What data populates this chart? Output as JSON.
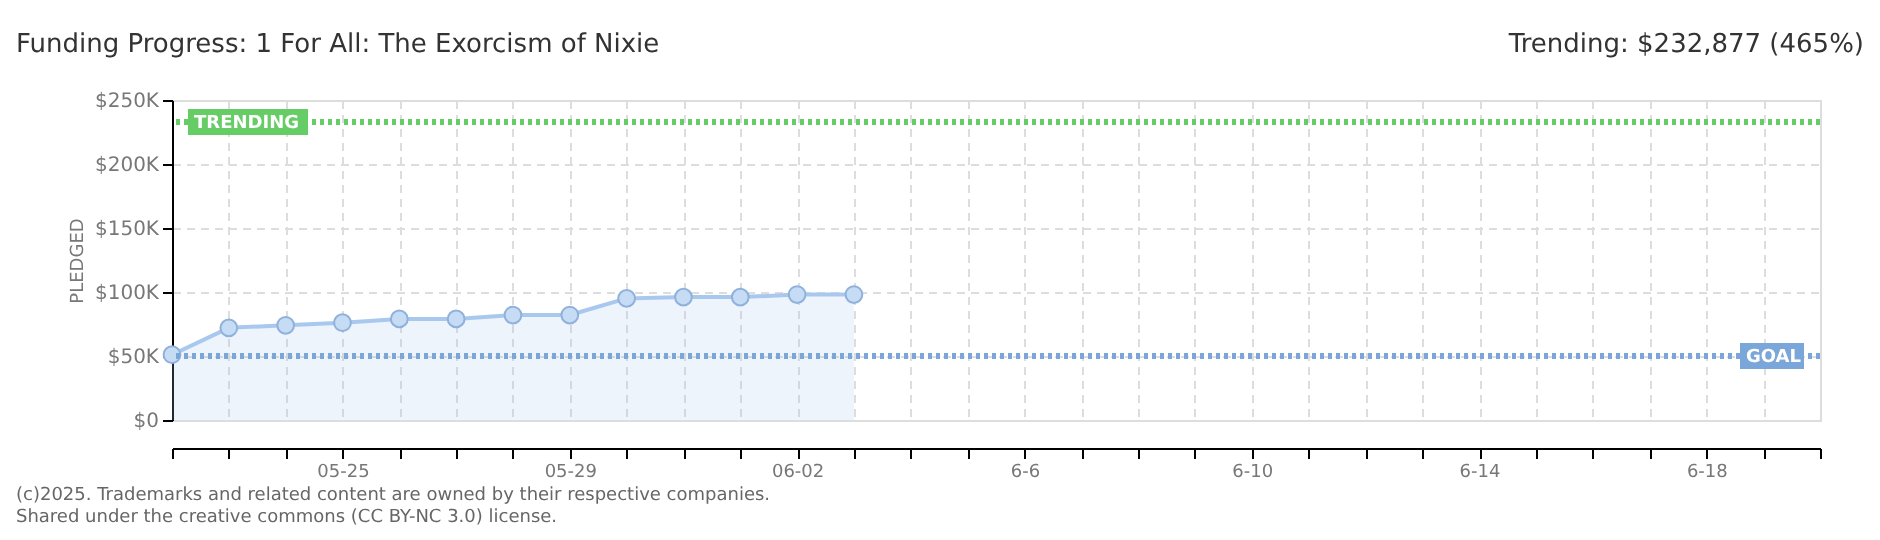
{
  "chart_data": {
    "type": "area",
    "title": "Funding Progress: 1 For All: The Exorcism of Nixie",
    "ylabel": "PLEDGED",
    "x": [
      "2025-05-22",
      "2025-05-23",
      "2025-05-24",
      "2025-05-25",
      "2025-05-26",
      "2025-05-27",
      "2025-05-28",
      "2025-05-29",
      "2025-05-30",
      "2025-05-31",
      "2025-06-01",
      "2025-06-02",
      "2025-06-03"
    ],
    "series": [
      {
        "color": "#a9c8ee",
        "values": [
          51000,
          72000,
          74000,
          76000,
          79000,
          79000,
          82000,
          82000,
          95000,
          96000,
          96000,
          98000,
          98000
        ]
      }
    ],
    "xlim": [
      "2025-05-22",
      "2025-06-20"
    ],
    "xticks": [
      {
        "value": "2025-05-22",
        "label": null
      },
      {
        "value": "2025-05-23",
        "label": null
      },
      {
        "value": "2025-05-24",
        "label": null
      },
      {
        "value": "2025-05-25",
        "label": "05-25"
      },
      {
        "value": "2025-05-26",
        "label": null
      },
      {
        "value": "2025-05-27",
        "label": null
      },
      {
        "value": "2025-05-28",
        "label": null
      },
      {
        "value": "2025-05-29",
        "label": "05-29"
      },
      {
        "value": "2025-05-30",
        "label": null
      },
      {
        "value": "2025-05-31",
        "label": null
      },
      {
        "value": "2025-06-01",
        "label": null
      },
      {
        "value": "2025-06-02",
        "label": "06-02"
      },
      {
        "value": "2025-06-03",
        "label": null
      },
      {
        "value": "2025-06-04",
        "label": null
      },
      {
        "value": "2025-06-05",
        "label": null
      },
      {
        "value": "2025-06-06",
        "label": "6-6"
      },
      {
        "value": "2025-06-07",
        "label": null
      },
      {
        "value": "2025-06-08",
        "label": null
      },
      {
        "value": "2025-06-09",
        "label": null
      },
      {
        "value": "2025-06-10",
        "label": "6-10"
      },
      {
        "value": "2025-06-11",
        "label": null
      },
      {
        "value": "2025-06-12",
        "label": null
      },
      {
        "value": "2025-06-13",
        "label": null
      },
      {
        "value": "2025-06-14",
        "label": "6-14"
      },
      {
        "value": "2025-06-15",
        "label": null
      },
      {
        "value": "2025-06-16",
        "label": null
      },
      {
        "value": "2025-06-17",
        "label": null
      },
      {
        "value": "2025-06-18",
        "label": "6-18"
      },
      {
        "value": "2025-06-19",
        "label": null
      },
      {
        "value": "2025-06-20",
        "label": null
      }
    ],
    "ylim": [
      0,
      250000
    ],
    "yticks": [
      {
        "value": 0,
        "label": "$0"
      },
      {
        "value": 50000,
        "label": "$50K"
      },
      {
        "value": 100000,
        "label": "$100K"
      },
      {
        "value": 150000,
        "label": "$150K"
      },
      {
        "value": 200000,
        "label": "$200K"
      },
      {
        "value": 250000,
        "label": "$250K"
      }
    ],
    "ref_lines": [
      {
        "axis": "y",
        "value": 232877,
        "label": "TRENDING",
        "color": "#66cc66",
        "line_style": "dotted"
      },
      {
        "axis": "y",
        "value": 50000,
        "label": "GOAL",
        "color": "#7aa6d9",
        "line_style": "dotted"
      }
    ],
    "annotations": [
      "Trending:  $232,877 (465%)",
      "(c)2025. Trademarks and related content are owned by their respective companies.",
      "Shared under the creative commons (CC BY-NC 3.0) license."
    ],
    "grid": true,
    "marker": "circle",
    "line_style": "solid"
  }
}
